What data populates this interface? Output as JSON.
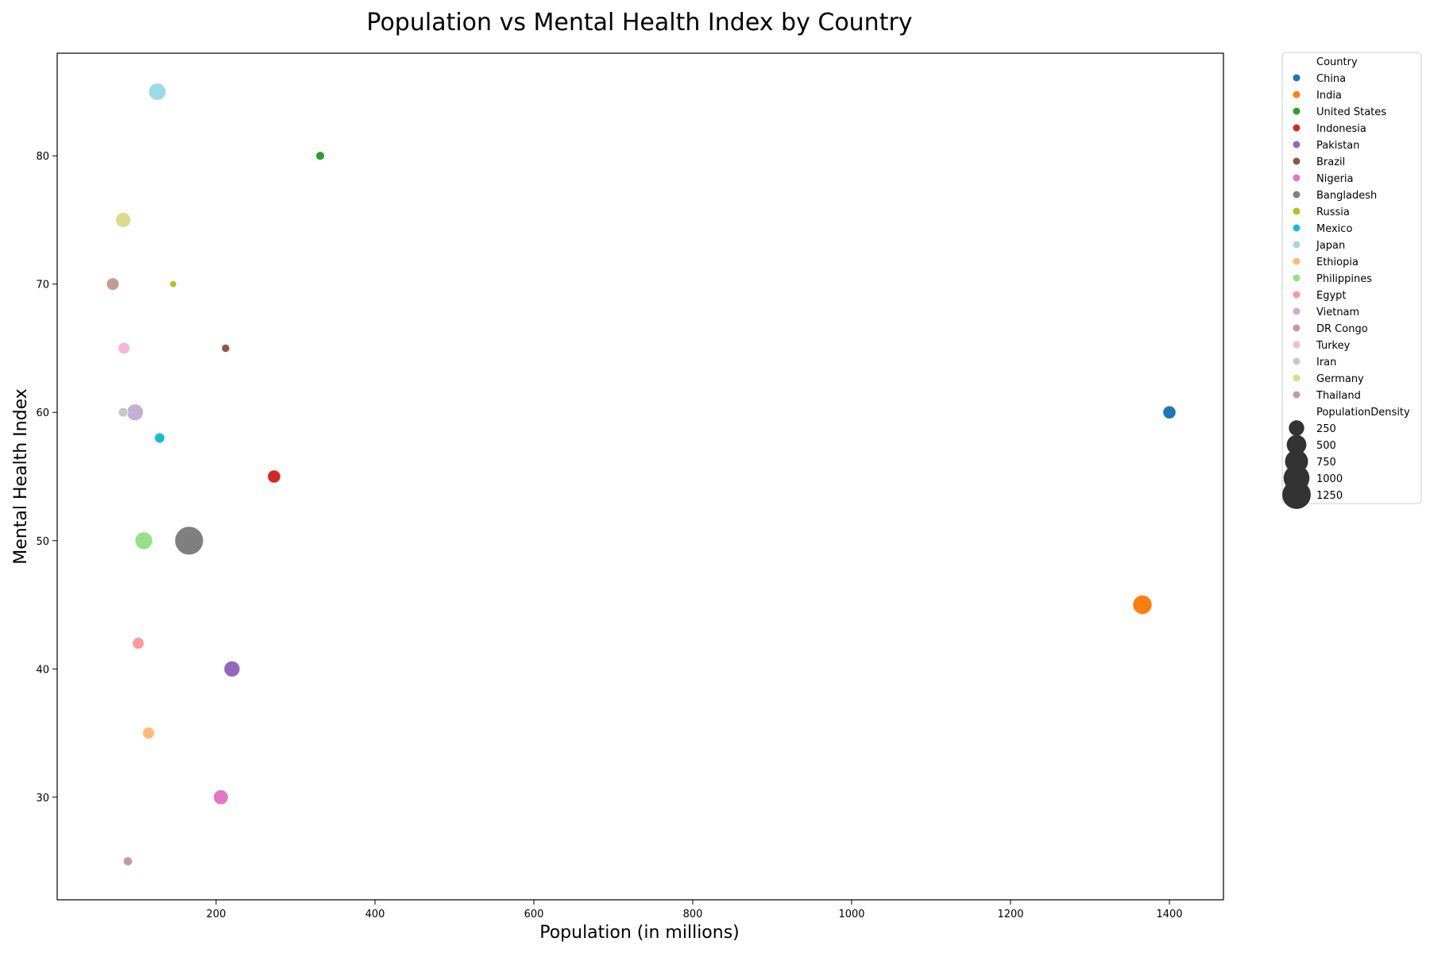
{
  "chart_data": {
    "type": "scatter",
    "title": "Population vs Mental Health Index by Country",
    "xlabel": "Population (in millions)",
    "ylabel": "Mental Health Index",
    "xlim": [
      0,
      1468
    ],
    "ylim": [
      22,
      88
    ],
    "xticks": [
      200,
      400,
      600,
      800,
      1000,
      1200,
      1400
    ],
    "yticks": [
      30,
      40,
      50,
      60,
      70,
      80
    ],
    "grid": false,
    "legend_position": "outside-right",
    "legend_title_hue": "Country",
    "legend_title_size": "PopulationDensity",
    "size_legend": [
      250,
      500,
      750,
      1000,
      1250
    ],
    "points": [
      {
        "country": "China",
        "color": "#1f77b4",
        "population": 1400,
        "mental_health_index": 60,
        "population_density": 153
      },
      {
        "country": "India",
        "color": "#ff7f0e",
        "population": 1366,
        "mental_health_index": 45,
        "population_density": 464
      },
      {
        "country": "United States",
        "color": "#2ca02c",
        "population": 331,
        "mental_health_index": 80,
        "population_density": 36
      },
      {
        "country": "Indonesia",
        "color": "#d62728",
        "population": 273,
        "mental_health_index": 55,
        "population_density": 151
      },
      {
        "country": "Pakistan",
        "color": "#9467bd",
        "population": 220,
        "mental_health_index": 40,
        "population_density": 287
      },
      {
        "country": "Brazil",
        "color": "#8c564b",
        "population": 212,
        "mental_health_index": 65,
        "population_density": 25
      },
      {
        "country": "Nigeria",
        "color": "#e377c2",
        "population": 206,
        "mental_health_index": 30,
        "population_density": 226
      },
      {
        "country": "Bangladesh",
        "color": "#7f7f7f",
        "population": 166,
        "mental_health_index": 50,
        "population_density": 1265
      },
      {
        "country": "Russia",
        "color": "#bcbd22",
        "population": 146,
        "mental_health_index": 70,
        "population_density": 9
      },
      {
        "country": "Mexico",
        "color": "#17becf",
        "population": 129,
        "mental_health_index": 58,
        "population_density": 66
      },
      {
        "country": "Japan",
        "color": "#9edae5",
        "population": 126,
        "mental_health_index": 85,
        "population_density": 347
      },
      {
        "country": "Ethiopia",
        "color": "#ffbb78",
        "population": 115,
        "mental_health_index": 35,
        "population_density": 115
      },
      {
        "country": "Philippines",
        "color": "#98df8a",
        "population": 109,
        "mental_health_index": 50,
        "population_density": 368
      },
      {
        "country": "Egypt",
        "color": "#ff9896",
        "population": 102,
        "mental_health_index": 42,
        "population_density": 103
      },
      {
        "country": "Vietnam",
        "color": "#c5b0d5",
        "population": 98,
        "mental_health_index": 60,
        "population_density": 314
      },
      {
        "country": "DR Congo",
        "color": "#c49c94",
        "population": 89,
        "mental_health_index": 25,
        "population_density": 40
      },
      {
        "country": "Turkey",
        "color": "#f7b6d2",
        "population": 84,
        "mental_health_index": 65,
        "population_density": 110
      },
      {
        "country": "Iran",
        "color": "#c7c7c7",
        "population": 83,
        "mental_health_index": 60,
        "population_density": 51
      },
      {
        "country": "Germany",
        "color": "#dbdb8d",
        "population": 83,
        "mental_health_index": 75,
        "population_density": 240
      },
      {
        "country": "Thailand",
        "color": "#c49c94",
        "population": 70,
        "mental_health_index": 70,
        "population_density": 137
      }
    ]
  }
}
